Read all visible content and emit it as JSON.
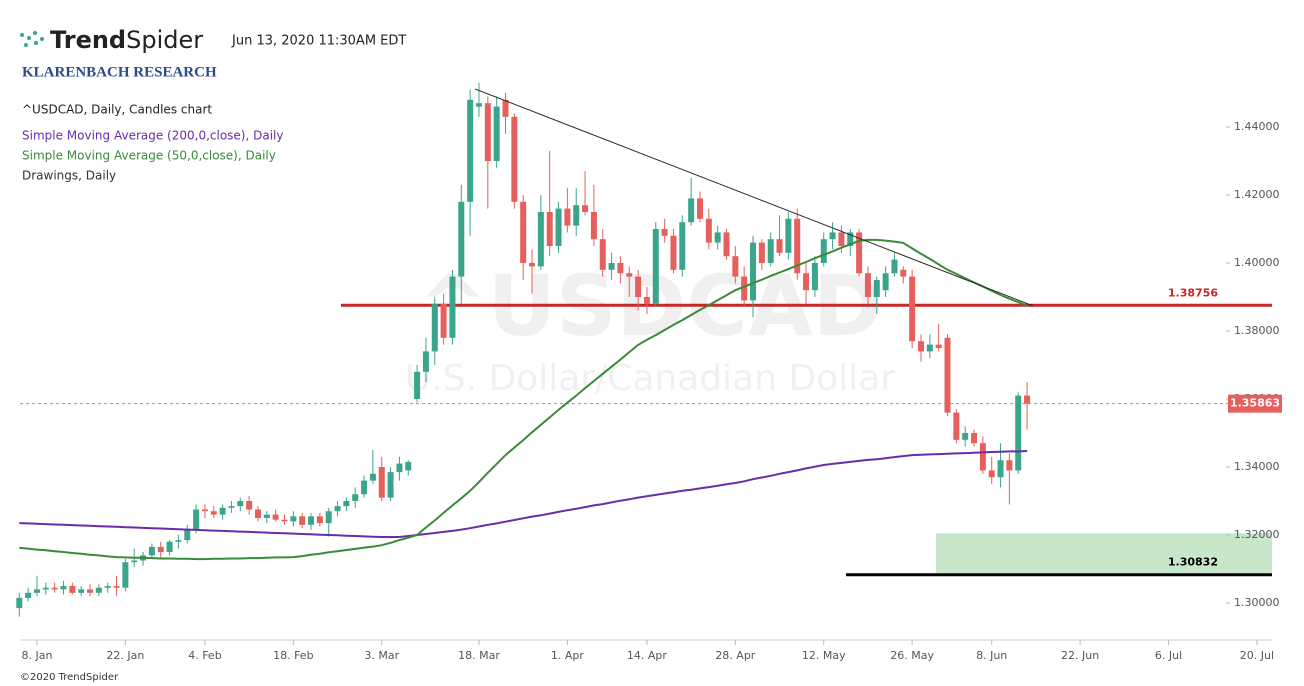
{
  "header": {
    "brand_bold": "Trend",
    "brand_light": "Spider",
    "timestamp": "Jun 13, 2020 11:30AM EDT",
    "research": "KLARENBACH RESEARCH"
  },
  "footer": "©2020 TrendSpider",
  "chart_data": {
    "type": "candlestick",
    "title": "^USDCAD, Daily, Candles chart",
    "drawings_label": "Drawings, Daily",
    "watermark": {
      "symbol": "^USDCAD",
      "name": "U.S. Dollar/Canadian Dollar"
    },
    "up_color": "#3aa58c",
    "down_color": "#e5605c",
    "ylim": [
      1.28912,
      1.46559
    ],
    "yticks": [
      {
        "value": 1.3,
        "label": "1.30000"
      },
      {
        "value": 1.32,
        "label": "1.32000"
      },
      {
        "value": 1.34,
        "label": "1.34000"
      },
      {
        "value": 1.36,
        "label": "1.36000"
      },
      {
        "value": 1.38,
        "label": "1.38000"
      },
      {
        "value": 1.4,
        "label": "1.40000"
      },
      {
        "value": 1.42,
        "label": "1.42000"
      },
      {
        "value": 1.44,
        "label": "1.44000"
      }
    ],
    "categories": [
      null,
      null,
      "8. Jan",
      null,
      null,
      null,
      null,
      null,
      null,
      null,
      null,
      null,
      "22. Jan",
      null,
      null,
      null,
      null,
      null,
      null,
      null,
      null,
      "4. Feb",
      null,
      null,
      null,
      null,
      null,
      null,
      null,
      null,
      null,
      "18. Feb",
      null,
      null,
      null,
      null,
      null,
      null,
      null,
      null,
      null,
      "3. Mar",
      null,
      null,
      null,
      null,
      null,
      null,
      null,
      null,
      null,
      null,
      "18. Mar",
      null,
      null,
      null,
      null,
      null,
      null,
      null,
      null,
      null,
      "1. Apr",
      null,
      null,
      null,
      null,
      null,
      null,
      null,
      null,
      "14. Apr",
      null,
      null,
      null,
      null,
      null,
      null,
      null,
      null,
      null,
      "28. Apr",
      null,
      null,
      null,
      null,
      null,
      null,
      null,
      null,
      null,
      "12. May",
      null,
      null,
      null,
      null,
      null,
      null,
      null,
      null,
      null,
      "26. May",
      null,
      null,
      null,
      null,
      null,
      null,
      null,
      null,
      "8. Jun",
      null,
      null,
      null,
      null,
      null,
      null,
      null,
      null,
      null,
      "22. Jun",
      null,
      null,
      null,
      null,
      null,
      null,
      null,
      null,
      null,
      "6. Jul",
      null,
      null,
      null,
      null,
      null,
      null,
      null,
      null,
      null,
      "20. Jul"
    ],
    "open": [
      1.2985,
      1.3015,
      1.303,
      1.304,
      1.3045,
      1.304,
      1.305,
      1.303,
      1.304,
      1.303,
      1.3045,
      1.305,
      1.3045,
      1.312,
      1.3125,
      1.314,
      1.3165,
      1.315,
      1.318,
      1.3185,
      1.3215,
      1.3275,
      1.327,
      1.326,
      1.328,
      1.3285,
      1.33,
      1.3275,
      1.325,
      1.326,
      1.3245,
      1.324,
      1.3255,
      1.323,
      1.3255,
      1.3235,
      1.327,
      1.3285,
      1.33,
      1.332,
      1.336,
      1.34,
      1.331,
      1.3385,
      1.339,
      1.36,
      1.368,
      1.374,
      1.388,
      1.378,
      1.396,
      1.418,
      1.446,
      1.447,
      1.43,
      1.448,
      1.443,
      1.418,
      1.4,
      1.399,
      1.415,
      1.405,
      1.416,
      1.411,
      1.417,
      1.415,
      1.407,
      1.398,
      1.4,
      1.397,
      1.396,
      1.39,
      1.388,
      1.41,
      1.408,
      1.398,
      1.412,
      1.419,
      1.413,
      1.406,
      1.409,
      1.402,
      1.396,
      1.389,
      1.406,
      1.4,
      1.407,
      1.403,
      1.413,
      1.397,
      1.392,
      1.4,
      1.407,
      1.409,
      1.405,
      1.409,
      1.397,
      1.39,
      1.392,
      1.397,
      1.398,
      1.396,
      1.377,
      1.374,
      1.376,
      1.378,
      1.356,
      1.348,
      1.35,
      1.347,
      1.339,
      1.337,
      1.342,
      1.339,
      1.361,
      null,
      null,
      null,
      null,
      null,
      null,
      null,
      null,
      null,
      null,
      null,
      null,
      null,
      null,
      null,
      null,
      null,
      null,
      null,
      null,
      null,
      null,
      null,
      null,
      null,
      null
    ],
    "high": [
      1.303,
      1.3045,
      1.308,
      1.306,
      1.306,
      1.3065,
      1.306,
      1.305,
      1.3055,
      1.3055,
      1.306,
      1.308,
      1.313,
      1.316,
      1.315,
      1.3175,
      1.318,
      1.3185,
      1.32,
      1.323,
      1.329,
      1.329,
      1.3285,
      1.329,
      1.33,
      1.331,
      1.3315,
      1.3285,
      1.327,
      1.3275,
      1.326,
      1.327,
      1.3265,
      1.3265,
      1.3265,
      1.328,
      1.33,
      1.331,
      1.334,
      1.3375,
      1.345,
      1.343,
      1.34,
      1.343,
      1.342,
      1.37,
      1.378,
      1.39,
      1.391,
      1.398,
      1.423,
      1.451,
      1.453,
      1.449,
      1.449,
      1.45,
      1.444,
      1.42,
      1.404,
      1.42,
      1.433,
      1.418,
      1.422,
      1.422,
      1.427,
      1.423,
      1.41,
      1.403,
      1.402,
      1.399,
      1.398,
      1.393,
      1.412,
      1.413,
      1.41,
      1.414,
      1.425,
      1.421,
      1.416,
      1.411,
      1.41,
      1.405,
      1.399,
      1.408,
      1.407,
      1.409,
      1.414,
      1.415,
      1.416,
      1.4,
      1.402,
      1.409,
      1.412,
      1.411,
      1.41,
      1.41,
      1.399,
      1.396,
      1.399,
      1.403,
      1.399,
      1.398,
      1.379,
      1.379,
      1.382,
      1.379,
      1.357,
      1.352,
      1.351,
      1.349,
      1.343,
      1.347,
      1.344,
      1.362,
      1.365,
      null,
      null,
      null,
      null,
      null,
      null,
      null,
      null,
      null,
      null,
      null,
      null,
      null,
      null,
      null,
      null,
      null,
      null,
      null,
      null,
      null,
      null,
      null,
      null,
      null,
      null
    ],
    "low": [
      1.296,
      1.3005,
      1.302,
      1.3025,
      1.303,
      1.3025,
      1.3025,
      1.302,
      1.302,
      1.302,
      1.303,
      1.302,
      1.3035,
      1.3105,
      1.311,
      1.313,
      1.313,
      1.314,
      1.316,
      1.3175,
      1.3205,
      1.325,
      1.325,
      1.3245,
      1.3265,
      1.327,
      1.326,
      1.324,
      1.3235,
      1.324,
      1.323,
      1.3225,
      1.322,
      1.3215,
      1.3225,
      1.3195,
      1.3255,
      1.327,
      1.328,
      1.331,
      1.335,
      1.33,
      1.33,
      1.336,
      1.3375,
      1.359,
      1.365,
      1.37,
      1.376,
      1.376,
      1.388,
      1.408,
      1.443,
      1.416,
      1.428,
      1.438,
      1.416,
      1.395,
      1.391,
      1.398,
      1.402,
      1.403,
      1.409,
      1.408,
      1.414,
      1.405,
      1.396,
      1.395,
      1.394,
      1.39,
      1.386,
      1.385,
      1.387,
      1.406,
      1.397,
      1.396,
      1.411,
      1.412,
      1.404,
      1.404,
      1.401,
      1.394,
      1.387,
      1.384,
      1.398,
      1.399,
      1.402,
      1.401,
      1.395,
      1.388,
      1.39,
      1.399,
      1.404,
      1.403,
      1.402,
      1.396,
      1.388,
      1.385,
      1.39,
      1.396,
      1.394,
      1.375,
      1.371,
      1.372,
      1.374,
      1.355,
      1.347,
      1.346,
      1.346,
      1.338,
      1.335,
      1.334,
      1.329,
      1.338,
      1.351,
      null,
      null,
      null,
      null,
      null,
      null,
      null,
      null,
      null,
      null,
      null,
      null,
      null,
      null,
      null,
      null,
      null,
      null,
      null,
      null,
      null,
      null,
      null,
      null,
      null,
      null
    ],
    "close": [
      1.3015,
      1.303,
      1.304,
      1.3045,
      1.304,
      1.305,
      1.303,
      1.304,
      1.303,
      1.3045,
      1.305,
      1.3045,
      1.312,
      1.3125,
      1.314,
      1.3165,
      1.315,
      1.318,
      1.3185,
      1.3215,
      1.3275,
      1.327,
      1.326,
      1.328,
      1.3285,
      1.33,
      1.3275,
      1.325,
      1.326,
      1.3245,
      1.324,
      1.3255,
      1.323,
      1.3255,
      1.3235,
      1.327,
      1.3285,
      1.33,
      1.332,
      1.336,
      1.338,
      1.331,
      1.3385,
      1.341,
      1.3415,
      1.368,
      1.374,
      1.388,
      1.378,
      1.396,
      1.418,
      1.448,
      1.447,
      1.43,
      1.446,
      1.443,
      1.418,
      1.4,
      1.399,
      1.415,
      1.405,
      1.416,
      1.411,
      1.417,
      1.415,
      1.407,
      1.398,
      1.4,
      1.397,
      1.396,
      1.39,
      1.388,
      1.41,
      1.408,
      1.398,
      1.412,
      1.419,
      1.413,
      1.406,
      1.409,
      1.402,
      1.396,
      1.389,
      1.406,
      1.4,
      1.407,
      1.403,
      1.413,
      1.397,
      1.392,
      1.4,
      1.407,
      1.409,
      1.405,
      1.409,
      1.397,
      1.39,
      1.395,
      1.397,
      1.401,
      1.396,
      1.377,
      1.374,
      1.376,
      1.375,
      1.356,
      1.348,
      1.35,
      1.347,
      1.339,
      1.337,
      1.342,
      1.339,
      1.361,
      1.35863,
      null,
      null,
      null,
      null,
      null,
      null,
      null,
      null,
      null,
      null,
      null,
      null,
      null,
      null,
      null,
      null,
      null,
      null,
      null,
      null,
      null,
      null,
      null,
      null,
      null,
      null
    ],
    "overlays": [
      {
        "name": "Simple Moving Average (200,0,close), Daily",
        "color": "#6a2ca8",
        "values": [
          1.3235,
          1.3234,
          1.3233,
          1.3232,
          1.3231,
          1.323,
          1.3229,
          1.3228,
          1.3227,
          1.3226,
          1.3225,
          1.3224,
          1.3223,
          1.3222,
          1.3221,
          1.322,
          1.3219,
          1.3218,
          1.3217,
          1.3216,
          1.3215,
          1.3214,
          1.3213,
          1.3212,
          1.3211,
          1.321,
          1.3209,
          1.3208,
          1.3207,
          1.3206,
          1.3205,
          1.3204,
          1.3203,
          1.3202,
          1.3201,
          1.32,
          1.3199,
          1.3198,
          1.3197,
          1.3196,
          1.3195,
          1.3194,
          1.3194,
          1.3194,
          1.3197,
          1.32,
          1.3203,
          1.3206,
          1.3209,
          1.3212,
          1.3216,
          1.322,
          1.3225,
          1.323,
          1.3234,
          1.3239,
          1.3244,
          1.3249,
          1.3254,
          1.3258,
          1.3263,
          1.3268,
          1.3273,
          1.3277,
          1.3282,
          1.3287,
          1.3291,
          1.3296,
          1.3301,
          1.3305,
          1.331,
          1.3314,
          1.3318,
          1.3322,
          1.3326,
          1.333,
          1.3333,
          1.3337,
          1.3341,
          1.3345,
          1.3349,
          1.3353,
          1.3358,
          1.3364,
          1.3369,
          1.3374,
          1.338,
          1.3385,
          1.339,
          1.3396,
          1.3401,
          1.3406,
          1.3409,
          1.3412,
          1.3415,
          1.3418,
          1.3421,
          1.3423,
          1.3426,
          1.3429,
          1.3432,
          1.3435,
          1.3436,
          1.3437,
          1.3438,
          1.3439,
          1.344,
          1.3441,
          1.3442,
          1.3443,
          1.3444,
          1.3445,
          1.3446,
          1.3446,
          1.3447,
          null,
          null,
          null,
          null,
          null,
          null,
          null,
          null,
          null,
          null,
          null,
          null,
          null,
          null,
          null,
          null,
          null,
          null,
          null,
          null,
          null,
          null,
          null,
          null,
          null,
          null
        ]
      },
      {
        "name": "Simple Moving Average (50,0,close), Daily",
        "color": "#3a8a3a",
        "values": [
          1.3162,
          1.316,
          1.3157,
          1.3155,
          1.3152,
          1.315,
          1.3147,
          1.3145,
          1.3142,
          1.314,
          1.3137,
          1.3135,
          1.3134,
          1.3133,
          1.3133,
          1.3132,
          1.3131,
          1.3131,
          1.313,
          1.313,
          1.3129,
          1.3129,
          1.313,
          1.313,
          1.3131,
          1.3131,
          1.3132,
          1.3132,
          1.3133,
          1.3134,
          1.3134,
          1.3135,
          1.3138,
          1.3142,
          1.3145,
          1.3149,
          1.3152,
          1.3156,
          1.3159,
          1.3163,
          1.3166,
          1.317,
          1.3177,
          1.3185,
          1.3192,
          1.32,
          1.3222,
          1.3243,
          1.3265,
          1.3287,
          1.3308,
          1.333,
          1.3356,
          1.3383,
          1.3409,
          1.3435,
          1.3457,
          1.3479,
          1.3502,
          1.3524,
          1.3546,
          1.3568,
          1.3589,
          1.361,
          1.3632,
          1.3653,
          1.3674,
          1.3695,
          1.3716,
          1.3738,
          1.3759,
          1.3774,
          1.3788,
          1.3803,
          1.3818,
          1.3832,
          1.3847,
          1.3862,
          1.3876,
          1.3891,
          1.3905,
          1.392,
          1.393,
          1.3941,
          1.3951,
          1.3962,
          1.3972,
          1.3982,
          1.3993,
          1.4003,
          1.4014,
          1.4024,
          1.4034,
          1.4045,
          1.4055,
          1.4065,
          1.4068,
          1.4068,
          1.4066,
          1.4063,
          1.4059,
          1.4043,
          1.4027,
          1.4012,
          1.3996,
          1.398,
          1.3968,
          1.3955,
          1.3943,
          1.3931,
          1.3918,
          1.3906,
          1.3895,
          1.3885,
          1.3874,
          null,
          null,
          null,
          null,
          null,
          null,
          null,
          null,
          null,
          null,
          null,
          null,
          null,
          null,
          null,
          null,
          null,
          null,
          null,
          null,
          null,
          null,
          null,
          null,
          null,
          null
        ]
      }
    ],
    "trendline": {
      "color": "#222222",
      "values": [
        1.4512,
        1.3874
      ]
    },
    "levels": [
      {
        "value": 1.38756,
        "color": "#c62828"
      },
      {
        "value": 1.30832,
        "color": "#000000"
      }
    ],
    "zone": {
      "from": 1.30832,
      "to": 1.3205,
      "color": "#c8e6c9"
    },
    "last_price": {
      "value": 1.35863,
      "color": "#e5605c"
    }
  }
}
